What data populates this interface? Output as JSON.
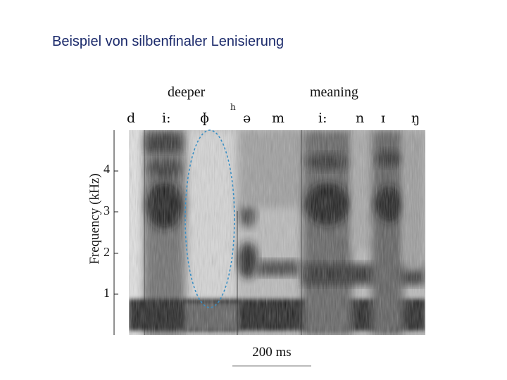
{
  "slide": {
    "title": "Beispiel von silbenfinaler Lenisierung"
  },
  "figure": {
    "words": [
      "deeper",
      "meaning"
    ],
    "phones": [
      "d",
      "i:",
      "ɸ",
      "h",
      "ə",
      "m",
      "i:",
      "n",
      "ɪ",
      "ŋ"
    ],
    "y_axis_label": "Frequency (kHz)",
    "y_ticks": [
      "4",
      "3",
      "2",
      "1"
    ],
    "time_scale_label": "200 ms",
    "highlight_color": "#3a8fc4"
  }
}
